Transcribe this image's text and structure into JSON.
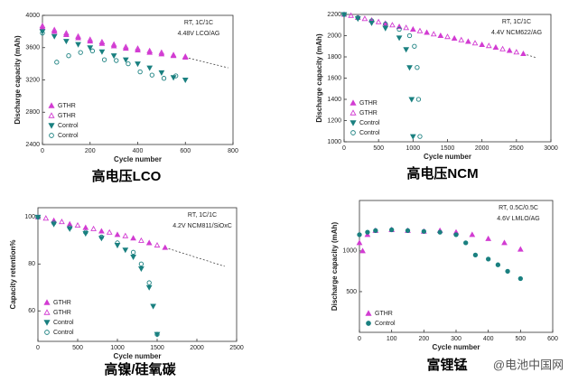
{
  "chart_data": [
    {
      "type": "scatter",
      "caption": "高电压LCO",
      "x_label": "Cycle number",
      "y_label": "Discharge capacity (mAh)",
      "annotations": [
        "RT, 1C/1C",
        "4.48V LCO/AG"
      ],
      "xlim": [
        0,
        800
      ],
      "xticks": [
        0,
        200,
        400,
        600,
        800
      ],
      "ylim": [
        2400,
        4000
      ],
      "yticks": [
        2400,
        2800,
        3200,
        3600,
        4000
      ],
      "legend": "lower left",
      "series": [
        {
          "name": "GTHR",
          "color": "#d23cd2",
          "marker": "triangle",
          "filled": true,
          "x": [
            0,
            50,
            100,
            150,
            200,
            250,
            300,
            350,
            400,
            450,
            500,
            550,
            600
          ],
          "values": [
            3850,
            3800,
            3760,
            3720,
            3680,
            3650,
            3620,
            3590,
            3570,
            3540,
            3520,
            3500,
            3480
          ]
        },
        {
          "name": "GTHR",
          "color": "#d23cd2",
          "marker": "triangle",
          "filled": false,
          "x": [
            0,
            50,
            100,
            150,
            200,
            250,
            300,
            350,
            400,
            450,
            500,
            550,
            600
          ],
          "values": [
            3870,
            3820,
            3780,
            3740,
            3700,
            3670,
            3640,
            3610,
            3590,
            3560,
            3540,
            3510,
            3490
          ]
        },
        {
          "name": "Control",
          "color": "#1a8080",
          "marker": "triangle-down",
          "filled": true,
          "x": [
            0,
            50,
            100,
            150,
            200,
            250,
            300,
            350,
            400,
            450,
            500,
            550,
            600
          ],
          "values": [
            3800,
            3740,
            3680,
            3640,
            3600,
            3550,
            3500,
            3450,
            3400,
            3350,
            3290,
            3230,
            3200
          ]
        },
        {
          "name": "Control",
          "color": "#1a8080",
          "marker": "circle",
          "filled": false,
          "x": [
            0,
            60,
            110,
            160,
            210,
            260,
            310,
            360,
            410,
            460,
            510,
            560
          ],
          "values": [
            3780,
            3420,
            3500,
            3540,
            3560,
            3450,
            3440,
            3400,
            3300,
            3260,
            3220,
            3250
          ]
        }
      ],
      "trend_line": {
        "x": [
          600,
          780
        ],
        "values": [
          3480,
          3350
        ]
      }
    },
    {
      "type": "scatter",
      "caption": "高电压NCM",
      "x_label": "Cycle number",
      "y_label": "Discharge capacity (mAh)",
      "annotations": [
        "RT, 1C/1C",
        "4.4V NCM622/AG"
      ],
      "xlim": [
        0,
        3000
      ],
      "xticks": [
        0,
        500,
        1000,
        1500,
        2000,
        2500,
        3000
      ],
      "ylim": [
        1000,
        2200
      ],
      "yticks": [
        1000,
        1200,
        1400,
        1600,
        1800,
        2000,
        2200
      ],
      "legend": "lower left",
      "series": [
        {
          "name": "GTHR",
          "color": "#d23cd2",
          "marker": "triangle",
          "filled": true,
          "x": [
            0,
            200,
            400,
            600,
            800,
            1000,
            1200,
            1400,
            1600,
            1800,
            2000,
            2200,
            2400,
            2600
          ],
          "values": [
            2200,
            2170,
            2145,
            2115,
            2085,
            2060,
            2030,
            2000,
            1975,
            1945,
            1915,
            1890,
            1860,
            1830
          ]
        },
        {
          "name": "GTHR",
          "color": "#d23cd2",
          "marker": "triangle",
          "filled": false,
          "x": [
            100,
            300,
            500,
            700,
            900,
            1100,
            1300,
            1500,
            1700,
            1900,
            2100,
            2300,
            2500
          ],
          "values": [
            2190,
            2160,
            2130,
            2100,
            2075,
            2045,
            2015,
            1990,
            1960,
            1930,
            1905,
            1875,
            1845
          ]
        },
        {
          "name": "Control",
          "color": "#1a8080",
          "marker": "triangle-down",
          "filled": true,
          "x": [
            0,
            200,
            400,
            600,
            800,
            900,
            950,
            980,
            1000
          ],
          "values": [
            2200,
            2160,
            2120,
            2070,
            1980,
            1870,
            1700,
            1400,
            1050
          ]
        },
        {
          "name": "Control",
          "color": "#1a8080",
          "marker": "circle",
          "filled": false,
          "x": [
            0,
            200,
            400,
            600,
            800,
            950,
            1020,
            1060,
            1080,
            1100
          ],
          "values": [
            2200,
            2170,
            2140,
            2110,
            2060,
            2000,
            1900,
            1700,
            1400,
            1050
          ]
        }
      ],
      "trend_line": {
        "x": [
          2600,
          2800
        ],
        "values": [
          1830,
          1790
        ]
      }
    },
    {
      "type": "scatter",
      "caption": "高镍/硅氧碳",
      "x_label": "Cycle number",
      "y_label": "Capacity retention%",
      "annotations": [
        "RT, 1C/1C",
        "4.2V NCM811/SiOxC"
      ],
      "xlim": [
        0,
        2500
      ],
      "xticks": [
        0,
        500,
        1000,
        1500,
        2000,
        2500
      ],
      "ylim": [
        47,
        104
      ],
      "yticks": [
        60,
        80,
        100
      ],
      "legend": "lower left",
      "series": [
        {
          "name": "GTHR",
          "color": "#d23cd2",
          "marker": "triangle",
          "filled": true,
          "x": [
            0,
            200,
            400,
            600,
            800,
            1000,
            1200,
            1400,
            1600
          ],
          "values": [
            100,
            98.5,
            97,
            95.5,
            94,
            92.5,
            91,
            89,
            87
          ]
        },
        {
          "name": "GTHR",
          "color": "#d23cd2",
          "marker": "triangle",
          "filled": false,
          "x": [
            100,
            300,
            500,
            700,
            900,
            1100,
            1300,
            1500
          ],
          "values": [
            99.5,
            98,
            96.5,
            95,
            93.5,
            92,
            90,
            88
          ]
        },
        {
          "name": "Control",
          "color": "#1a8080",
          "marker": "triangle-down",
          "filled": true,
          "x": [
            0,
            200,
            400,
            600,
            800,
            1000,
            1100,
            1200,
            1300,
            1400,
            1450,
            1500
          ],
          "values": [
            100,
            97,
            95,
            93,
            91,
            88,
            86,
            83,
            78,
            70,
            62,
            50
          ]
        },
        {
          "name": "Control",
          "color": "#1a8080",
          "marker": "circle",
          "filled": false,
          "x": [
            0,
            200,
            400,
            600,
            800,
            1000,
            1200,
            1300,
            1400,
            1500
          ],
          "values": [
            100,
            97.5,
            95.5,
            93.5,
            91.5,
            89,
            85,
            80,
            72,
            50
          ]
        }
      ],
      "trend_line": {
        "x": [
          1600,
          2350
        ],
        "values": [
          87,
          79
        ]
      }
    },
    {
      "type": "scatter",
      "caption": "富锂锰",
      "x_label": "Cycle number",
      "y_label": "Discharge capacity (mAh)",
      "annotations": [
        "RT, 0.5C/0.5C",
        "4.6V LMLO/AG"
      ],
      "xlim": [
        0,
        600
      ],
      "xticks": [
        0,
        100,
        200,
        300,
        400,
        500,
        600
      ],
      "ylim": [
        0,
        1620
      ],
      "yticks": [
        500,
        1000
      ],
      "legend": "lower left",
      "series": [
        {
          "name": "GTHR",
          "color": "#d23cd2",
          "marker": "triangle",
          "filled": true,
          "x": [
            0,
            10,
            25,
            50,
            100,
            150,
            200,
            250,
            300,
            350,
            400,
            450,
            500
          ],
          "values": [
            1100,
            1000,
            1200,
            1250,
            1260,
            1250,
            1240,
            1250,
            1230,
            1200,
            1150,
            1100,
            1020
          ]
        },
        {
          "name": "Control",
          "color": "#1a8080",
          "marker": "circle",
          "filled": true,
          "x": [
            0,
            25,
            50,
            100,
            150,
            200,
            250,
            300,
            330,
            360,
            400,
            430,
            460,
            500
          ],
          "values": [
            1200,
            1230,
            1250,
            1260,
            1250,
            1240,
            1230,
            1200,
            1100,
            950,
            900,
            830,
            750,
            660
          ]
        }
      ]
    }
  ],
  "watermark": "@电池中国网"
}
